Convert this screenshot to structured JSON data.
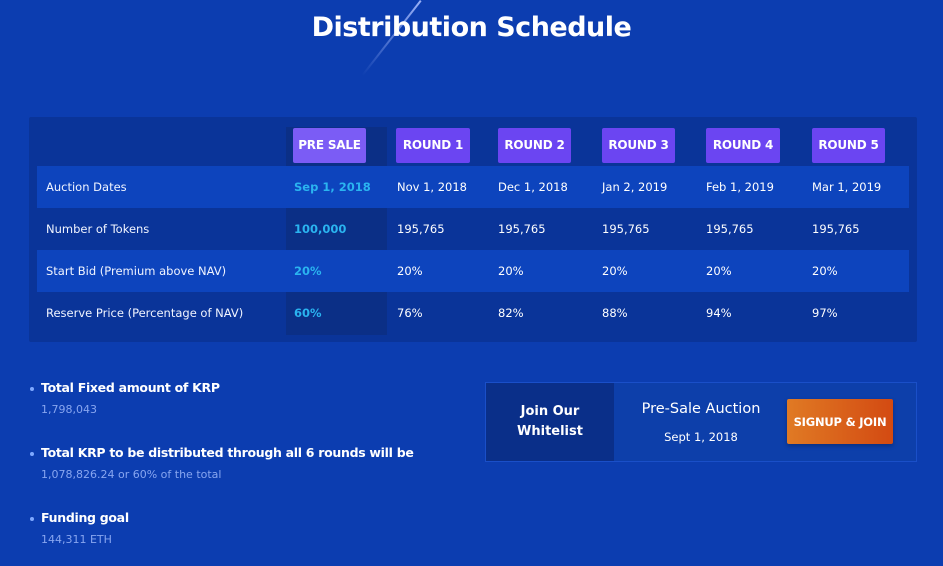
{
  "page": {
    "title": "Distribution Schedule"
  },
  "schedule": {
    "columns": [
      "PRE SALE",
      "ROUND 1",
      "ROUND 2",
      "ROUND 3",
      "ROUND 4",
      "ROUND 5"
    ],
    "rows": [
      {
        "label": "Auction Dates",
        "values": [
          "Sep 1, 2018",
          "Nov 1, 2018",
          "Dec 1, 2018",
          "Jan 2, 2019",
          "Feb 1, 2019",
          "Mar 1, 2019"
        ]
      },
      {
        "label": "Number of Tokens",
        "values": [
          "100,000",
          "195,765",
          "195,765",
          "195,765",
          "195,765",
          "195,765"
        ]
      },
      {
        "label": "Start Bid (Premium above NAV)",
        "values": [
          "20%",
          "20%",
          "20%",
          "20%",
          "20%",
          "20%"
        ]
      },
      {
        "label": "Reserve Price (Percentage of NAV)",
        "values": [
          "60%",
          "76%",
          "82%",
          "88%",
          "94%",
          "97%"
        ]
      }
    ]
  },
  "facts": [
    {
      "title": "Total Fixed amount of KRP",
      "value": "1,798,043"
    },
    {
      "title": "Total KRP to be distributed through all 6 rounds will be",
      "value": "1,078,826.24 or 60% of the total"
    },
    {
      "title": "Funding goal",
      "value": "144,311 ETH"
    }
  ],
  "whitelist": {
    "label_line1": "Join Our",
    "label_line2": "Whitelist",
    "title": "Pre-Sale Auction",
    "date": "Sept 1, 2018",
    "button": "SIGNUP & JOIN"
  },
  "colors": {
    "background": "#0c3db0",
    "badge": "#6b45f2",
    "presale_highlight": "#2ab4f0",
    "signup_gradient_start": "#e07a24",
    "signup_gradient_end": "#d34a12"
  }
}
